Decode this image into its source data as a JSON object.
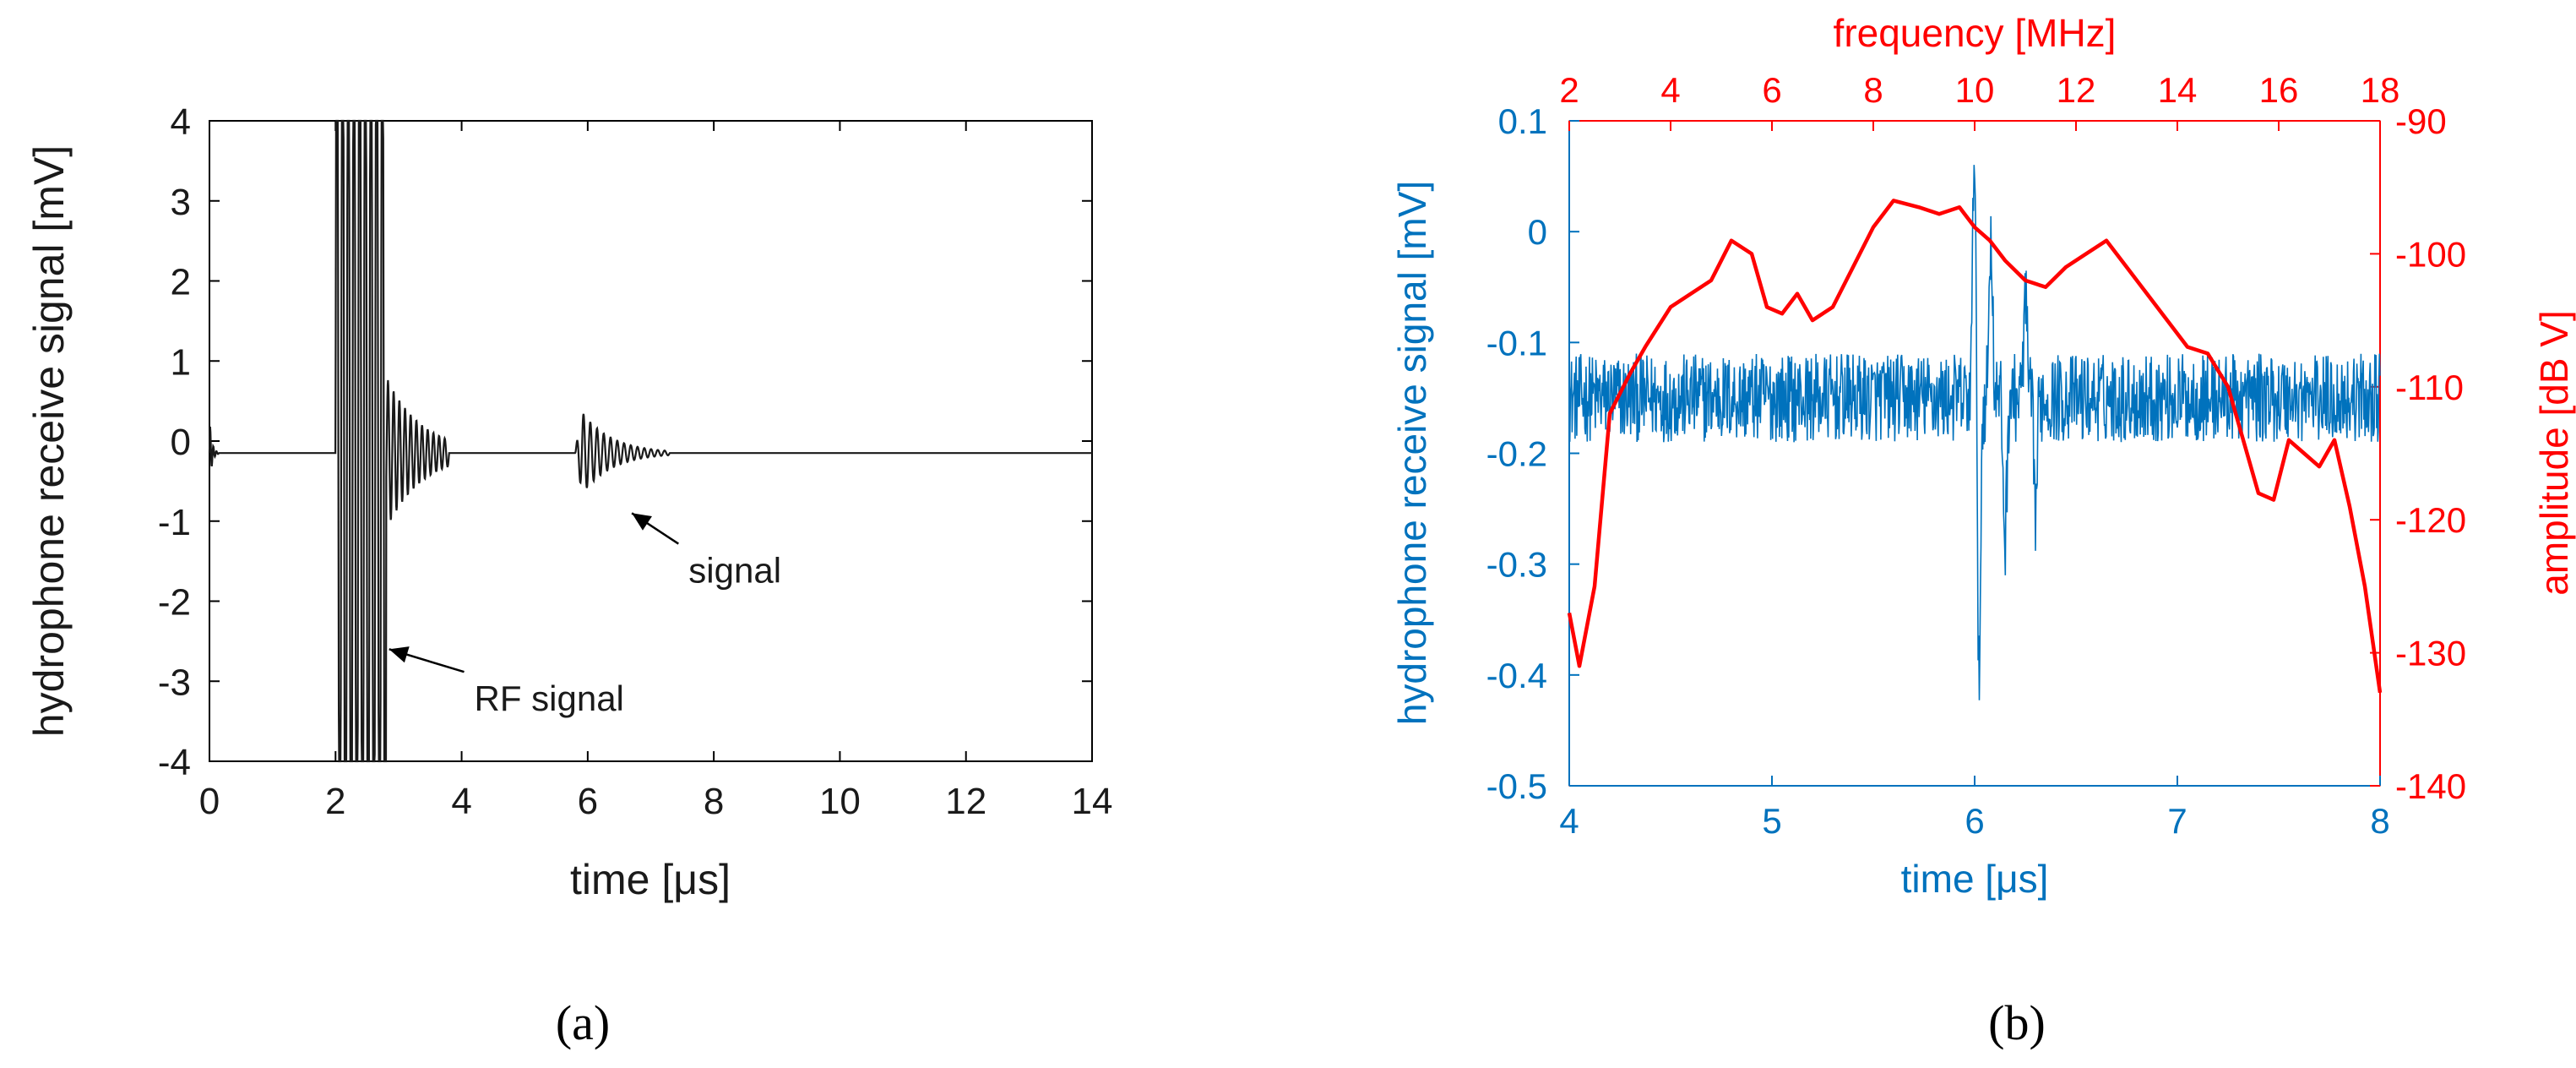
{
  "chart_data": [
    {
      "panel_label": "(a)",
      "type": "line",
      "xlabel": "time [μs]",
      "ylabel": "hydrophone receive signal [mV]",
      "xlim": [
        0,
        14
      ],
      "ylim": [
        -4,
        4
      ],
      "xticks": [
        "0",
        "2",
        "4",
        "6",
        "8",
        "10",
        "12",
        "14"
      ],
      "yticks": [
        "4",
        "3",
        "2",
        "1",
        "0",
        "-1",
        "-2",
        "-3",
        "-4"
      ],
      "grid": false,
      "colors": {
        "trace": "#1a1a1a",
        "axes": "#000000"
      },
      "series": [
        {
          "baseline": -0.15,
          "segments": [
            {
              "x0": 0.0,
              "x1": 0.15,
              "peak": 0.45,
              "cycles": 3,
              "type": "spike"
            },
            {
              "x0": 2.0,
              "x1": 3.8,
              "peak": 4.0,
              "clip_end": 2.8,
              "cycles": 20,
              "type": "burst"
            },
            {
              "x0": 5.8,
              "x1": 7.3,
              "peak": 0.65,
              "cycles": 14,
              "type": "burst"
            }
          ]
        }
      ],
      "annotations": [
        {
          "text": "RF signal",
          "arrow_to": [
            2.85,
            -2.6
          ],
          "text_at": [
            4.2,
            -3.2
          ]
        },
        {
          "text": "signal",
          "arrow_to": [
            6.7,
            -0.9
          ],
          "text_at": [
            7.6,
            -1.6
          ]
        }
      ]
    },
    {
      "panel_label": "(b)",
      "type": "line",
      "xlabel": "time [μs]",
      "ylabel": "hydrophone receive signal [mV]",
      "x2label": "frequency [MHz]",
      "y2label": "amplitude [dB V]",
      "xlim": [
        4,
        8
      ],
      "ylim": [
        -0.5,
        0.1
      ],
      "x2lim": [
        2,
        18
      ],
      "y2lim": [
        -140,
        -90
      ],
      "xticks": [
        "4",
        "5",
        "6",
        "7",
        "8"
      ],
      "yticks": [
        "0.1",
        "0",
        "-0.1",
        "-0.2",
        "-0.3",
        "-0.4",
        "-0.5"
      ],
      "x2ticks": [
        "2",
        "4",
        "6",
        "8",
        "10",
        "12",
        "14",
        "16",
        "18"
      ],
      "y2ticks": [
        "-90",
        "-100",
        "-110",
        "-120",
        "-130",
        "-140"
      ],
      "grid": false,
      "colors": {
        "time_series": "#0072bd",
        "spectrum": "#ff0000"
      },
      "series": [
        {
          "name": "hydrophone receive signal",
          "axis": "left-bottom",
          "baseline": -0.15,
          "noise": 0.04,
          "events": [
            {
              "x": 6.0,
              "y": 0.1
            },
            {
              "x": 6.02,
              "y": -0.42
            },
            {
              "x": 6.08,
              "y": 0.0
            },
            {
              "x": 6.15,
              "y": -0.28
            },
            {
              "x": 6.25,
              "y": -0.06
            },
            {
              "x": 6.3,
              "y": -0.25
            }
          ]
        },
        {
          "name": "amplitude",
          "axis": "right-top",
          "x": [
            2.0,
            2.2,
            2.5,
            2.8,
            3.2,
            3.5,
            4.0,
            4.4,
            4.8,
            5.2,
            5.6,
            5.9,
            6.2,
            6.5,
            6.8,
            7.2,
            7.6,
            8.0,
            8.4,
            8.9,
            9.3,
            9.7,
            10.0,
            10.3,
            10.6,
            11.0,
            11.4,
            11.8,
            12.2,
            12.6,
            13.0,
            13.4,
            13.8,
            14.2,
            14.6,
            15.0,
            15.3,
            15.6,
            15.9,
            16.2,
            16.5,
            16.8,
            17.1,
            17.4,
            17.7,
            18.0
          ],
          "y": [
            -127,
            -131,
            -125,
            -112,
            -109,
            -107,
            -104,
            -103,
            -102,
            -99,
            -100,
            -104,
            -104.5,
            -103,
            -105,
            -104,
            -101,
            -98,
            -96,
            -96.5,
            -97,
            -96.5,
            -98,
            -99,
            -100.5,
            -102,
            -102.5,
            -101,
            -100,
            -99,
            -101,
            -103,
            -105,
            -107,
            -107.5,
            -110,
            -114,
            -118,
            -118.5,
            -114,
            -115,
            -116,
            -114,
            -119,
            -125,
            -133
          ]
        }
      ]
    }
  ],
  "captions": {
    "a": "(a)",
    "b": "(b)"
  }
}
